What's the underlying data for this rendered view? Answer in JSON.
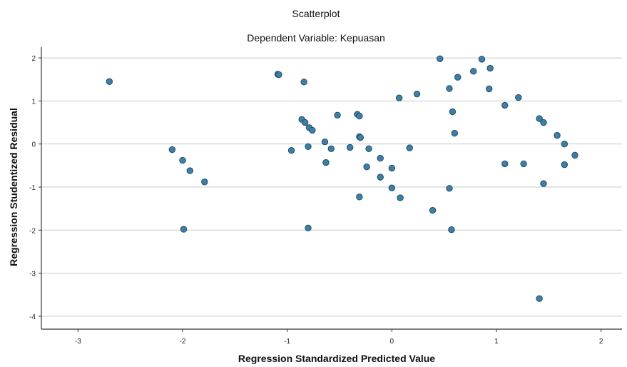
{
  "chart_data": {
    "type": "scatter",
    "title": "Scatterplot",
    "subtitle": "Dependent Variable: Kepuasan",
    "xlabel": "Regression Standardized Predicted Value",
    "ylabel": "Regression Studentized Residual",
    "xlim": [
      -3.35,
      2.2
    ],
    "ylim": [
      -4.3,
      2.25
    ],
    "xticks": [
      -3,
      -2,
      -1,
      0,
      1,
      2
    ],
    "yticks": [
      -4,
      -3,
      -2,
      -1,
      0,
      1,
      2
    ],
    "grid": "horizontal",
    "marker_color": "#3f7fa6",
    "marker_edge": "#1f4d6b",
    "points": [
      [
        -2.7,
        1.45
      ],
      [
        -2.1,
        -0.13
      ],
      [
        -2.0,
        -0.38
      ],
      [
        -1.93,
        -0.62
      ],
      [
        -1.79,
        -0.88
      ],
      [
        -1.99,
        -1.98
      ],
      [
        -1.09,
        1.62
      ],
      [
        -1.08,
        1.61
      ],
      [
        -0.84,
        1.44
      ],
      [
        -0.86,
        0.57
      ],
      [
        -0.83,
        0.5
      ],
      [
        -0.79,
        0.38
      ],
      [
        -0.76,
        0.32
      ],
      [
        -0.96,
        -0.15
      ],
      [
        -0.8,
        -0.06
      ],
      [
        -0.64,
        0.05
      ],
      [
        -0.63,
        -0.43
      ],
      [
        -0.58,
        -0.11
      ],
      [
        -0.52,
        0.67
      ],
      [
        -0.33,
        0.69
      ],
      [
        -0.31,
        0.65
      ],
      [
        -0.31,
        0.17
      ],
      [
        -0.3,
        0.15
      ],
      [
        -0.4,
        -0.08
      ],
      [
        -0.22,
        -0.11
      ],
      [
        -0.24,
        -0.53
      ],
      [
        -0.11,
        -0.33
      ],
      [
        -0.11,
        -0.77
      ],
      [
        0.0,
        -0.56
      ],
      [
        -0.31,
        -1.23
      ],
      [
        -0.8,
        -1.95
      ],
      [
        0.0,
        -1.02
      ],
      [
        0.08,
        -1.25
      ],
      [
        0.07,
        1.07
      ],
      [
        0.17,
        -0.09
      ],
      [
        0.24,
        1.16
      ],
      [
        0.39,
        -1.54
      ],
      [
        0.46,
        1.98
      ],
      [
        0.55,
        1.29
      ],
      [
        0.63,
        1.55
      ],
      [
        0.58,
        0.75
      ],
      [
        0.6,
        0.25
      ],
      [
        0.55,
        -1.03
      ],
      [
        0.57,
        -1.99
      ],
      [
        0.78,
        1.69
      ],
      [
        0.86,
        1.97
      ],
      [
        0.94,
        1.76
      ],
      [
        0.93,
        1.28
      ],
      [
        1.08,
        0.9
      ],
      [
        1.08,
        -0.46
      ],
      [
        1.21,
        1.08
      ],
      [
        1.26,
        -0.46
      ],
      [
        1.41,
        0.59
      ],
      [
        1.45,
        0.5
      ],
      [
        1.58,
        0.2
      ],
      [
        1.65,
        0.0
      ],
      [
        1.65,
        -0.48
      ],
      [
        1.75,
        -0.26
      ],
      [
        1.45,
        -0.92
      ],
      [
        1.41,
        -3.59
      ]
    ]
  }
}
